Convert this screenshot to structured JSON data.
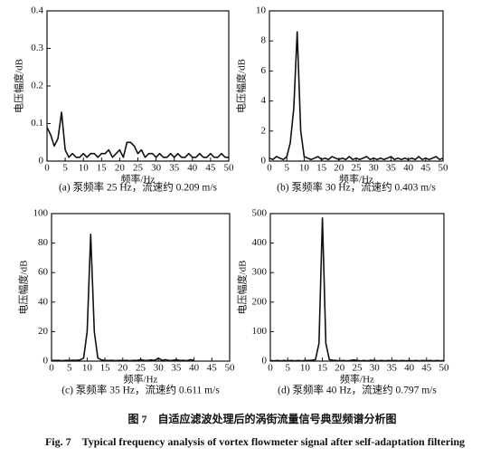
{
  "chart_data": [
    {
      "type": "line",
      "caption": "(a) 泵频率 25 Hz，流速约 0.209 m/s",
      "x_label": "频率/Hz",
      "y_label": "电压幅度/dB",
      "xlim": [
        0,
        50
      ],
      "xticks": [
        0,
        5,
        10,
        15,
        20,
        25,
        30,
        35,
        40,
        45,
        50
      ],
      "ylim": [
        0,
        0.4
      ],
      "yticks": [
        0,
        0.1,
        0.2,
        0.3,
        0.4
      ],
      "color": "#111111",
      "x": [
        0,
        1,
        2,
        3,
        4,
        5,
        6,
        7,
        8,
        9,
        10,
        11,
        12,
        13,
        14,
        15,
        16,
        17,
        18,
        19,
        20,
        21,
        22,
        23,
        24,
        25,
        26,
        27,
        28,
        29,
        30,
        31,
        32,
        33,
        34,
        35,
        36,
        37,
        38,
        39,
        40,
        41,
        42,
        43,
        44,
        45,
        46,
        47,
        48,
        49,
        50
      ],
      "values": [
        0.09,
        0.07,
        0.04,
        0.06,
        0.13,
        0.03,
        0.01,
        0.02,
        0.01,
        0.01,
        0.02,
        0.01,
        0.02,
        0.02,
        0.01,
        0.02,
        0.02,
        0.03,
        0.01,
        0.02,
        0.03,
        0.01,
        0.05,
        0.05,
        0.04,
        0.02,
        0.03,
        0.01,
        0.02,
        0.02,
        0.01,
        0.02,
        0.01,
        0.01,
        0.02,
        0.01,
        0.02,
        0.01,
        0.01,
        0.02,
        0.01,
        0.01,
        0.02,
        0.01,
        0.01,
        0.02,
        0.01,
        0.01,
        0.02,
        0.01,
        0.01
      ]
    },
    {
      "type": "line",
      "caption": "(b) 泵频率 30 Hz，流速约 0.403 m/s",
      "x_label": "频率/Hz",
      "y_label": "电压幅度/dB",
      "xlim": [
        0,
        50
      ],
      "xticks": [
        0,
        5,
        10,
        15,
        20,
        25,
        30,
        35,
        40,
        45,
        50
      ],
      "ylim": [
        0,
        10
      ],
      "yticks": [
        0,
        2,
        4,
        6,
        8,
        10
      ],
      "color": "#111111",
      "x": [
        0,
        1,
        2,
        3,
        4,
        5,
        6,
        7,
        8,
        9,
        10,
        11,
        12,
        13,
        14,
        15,
        16,
        17,
        18,
        19,
        20,
        21,
        22,
        23,
        24,
        25,
        26,
        27,
        28,
        29,
        30,
        31,
        32,
        33,
        34,
        35,
        36,
        37,
        38,
        39,
        40,
        41,
        42,
        43,
        44,
        45,
        46,
        47,
        48,
        49,
        50
      ],
      "values": [
        0.2,
        0.1,
        0.3,
        0.2,
        0.1,
        0.3,
        1.2,
        3.5,
        8.6,
        2,
        0.3,
        0.2,
        0.1,
        0.2,
        0.3,
        0.1,
        0.2,
        0.1,
        0.3,
        0.2,
        0.1,
        0.2,
        0.1,
        0.3,
        0.1,
        0.2,
        0.1,
        0.2,
        0.3,
        0.1,
        0.2,
        0.1,
        0.2,
        0.1,
        0.2,
        0.3,
        0.1,
        0.2,
        0.1,
        0.2,
        0.1,
        0.2,
        0.1,
        0.3,
        0.1,
        0.2,
        0.1,
        0.2,
        0.3,
        0.1,
        0.2
      ]
    },
    {
      "type": "line",
      "caption": "(c) 泵频率 35 Hz，流速约 0.611 m/s",
      "x_label": "频率/Hz",
      "y_label": "电压幅度/dB",
      "xlim": [
        0,
        50
      ],
      "xticks": [
        0,
        5,
        10,
        15,
        20,
        25,
        30,
        35,
        40,
        45,
        50
      ],
      "ylim": [
        0,
        100
      ],
      "yticks": [
        0,
        20,
        40,
        60,
        80,
        100
      ],
      "color": "#111111",
      "x": [
        0,
        1,
        2,
        3,
        4,
        5,
        6,
        7,
        8,
        9,
        10,
        11,
        12,
        13,
        14,
        15,
        16,
        17,
        18,
        19,
        20,
        21,
        22,
        23,
        24,
        25,
        26,
        27,
        28,
        29,
        30,
        31,
        32,
        33,
        34,
        35,
        36,
        37,
        38,
        39,
        40
      ],
      "values": [
        0.5,
        0.4,
        0.5,
        0.3,
        0.5,
        0.4,
        0.6,
        0.5,
        0.8,
        2,
        20,
        86,
        20,
        2,
        0.8,
        0.5,
        0.4,
        0.5,
        0.3,
        0.5,
        0.4,
        0.5,
        0.3,
        0.5,
        0.4,
        1,
        0.5,
        0.4,
        0.8,
        0.5,
        2,
        0.5,
        1,
        0.4,
        0.5,
        1,
        0.4,
        0.5,
        0.3,
        1,
        0.4
      ]
    },
    {
      "type": "line",
      "caption": "(d) 泵频率 40 Hz，流速约 0.797 m/s",
      "x_label": "频率/Hz",
      "y_label": "电压幅度/dB",
      "xlim": [
        0,
        50
      ],
      "xticks": [
        0,
        5,
        10,
        15,
        20,
        25,
        30,
        35,
        40,
        45,
        50
      ],
      "ylim": [
        0,
        500
      ],
      "yticks": [
        0,
        100,
        200,
        300,
        400,
        500
      ],
      "color": "#111111",
      "x": [
        0,
        1,
        2,
        3,
        4,
        5,
        6,
        7,
        8,
        9,
        10,
        11,
        12,
        13,
        14,
        15,
        16,
        17,
        18,
        19,
        20,
        21,
        22,
        23,
        24,
        25,
        26,
        27,
        28,
        29,
        30,
        31,
        32,
        33,
        34,
        35,
        36,
        37,
        38,
        39,
        40,
        41,
        42,
        43,
        44,
        45,
        46,
        47,
        48,
        49,
        50
      ],
      "values": [
        2,
        1,
        2,
        1,
        2,
        1,
        2,
        1,
        2,
        1,
        2,
        2,
        3,
        5,
        60,
        485,
        60,
        5,
        3,
        2,
        1,
        2,
        1,
        2,
        4,
        2,
        1,
        2,
        1,
        3,
        2,
        1,
        2,
        1,
        2,
        1,
        2,
        1,
        2,
        1,
        2,
        1,
        2,
        1,
        2,
        1,
        2,
        1,
        2,
        1,
        2
      ]
    }
  ],
  "figure": {
    "caption_zh": "图 7　自适应滤波处理后的涡街流量信号典型频谱分析图",
    "caption_en": "Fig. 7　Typical frequency analysis of vortex flowmeter signal after self-adaptation filtering"
  }
}
